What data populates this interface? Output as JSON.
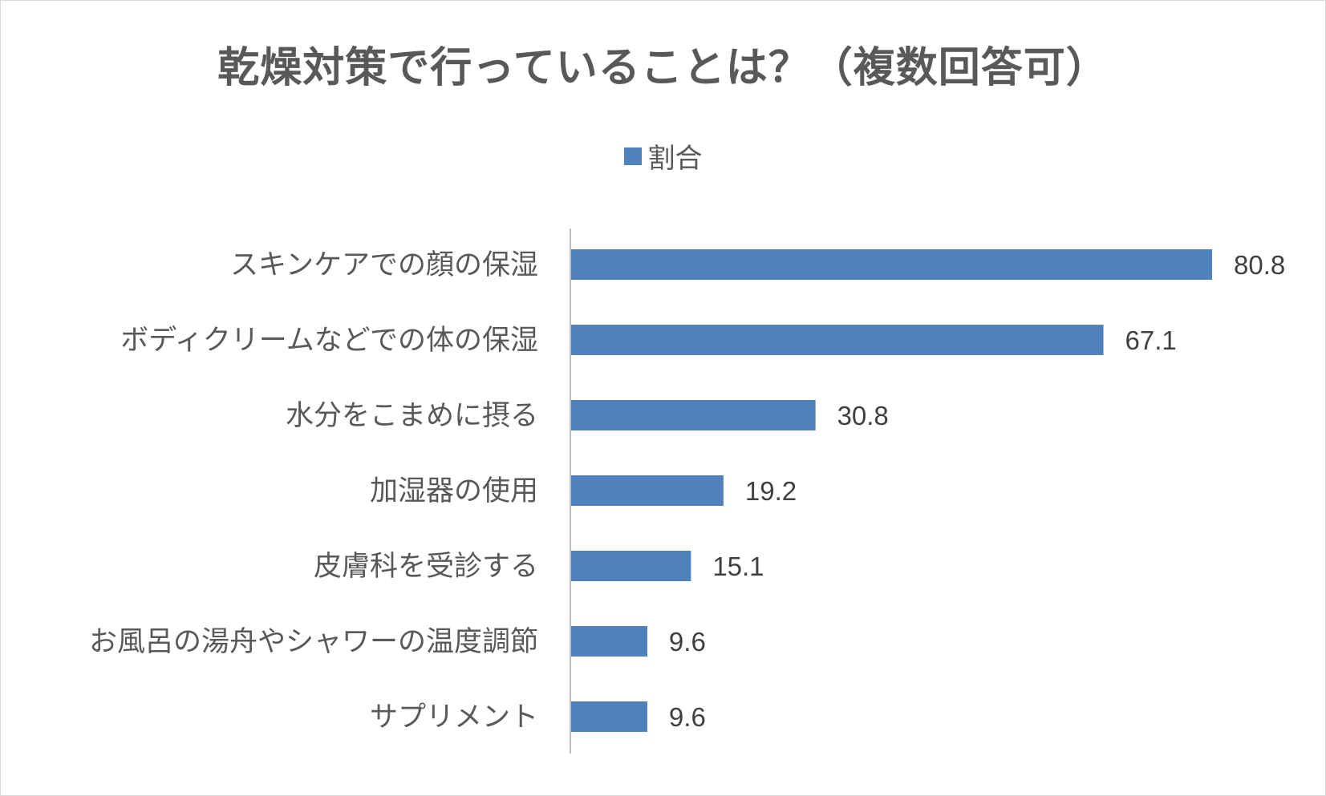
{
  "chart_data": {
    "type": "bar",
    "orientation": "horizontal",
    "title": "乾燥対策で行っていることは？（複数回答可）",
    "categories": [
      "スキンケアでの顔の保湿",
      "ボディクリームなどでの体の保湿",
      "水分をこまめに摂る",
      "加湿器の使用",
      "皮膚科を受診する",
      "お風呂の湯舟やシャワーの温度調節",
      "サプリメント"
    ],
    "series": [
      {
        "name": "割合",
        "values": [
          80.8,
          67.1,
          30.8,
          19.2,
          15.1,
          9.6,
          9.6
        ],
        "labels": [
          "80.8",
          "67.1",
          "30.8",
          "19.2",
          "15.1",
          "9.6",
          "9.6"
        ],
        "color": "#4f81bd"
      }
    ],
    "xlim": [
      0,
      100
    ],
    "grid": false,
    "legend_position": "top",
    "data_labels": true
  }
}
